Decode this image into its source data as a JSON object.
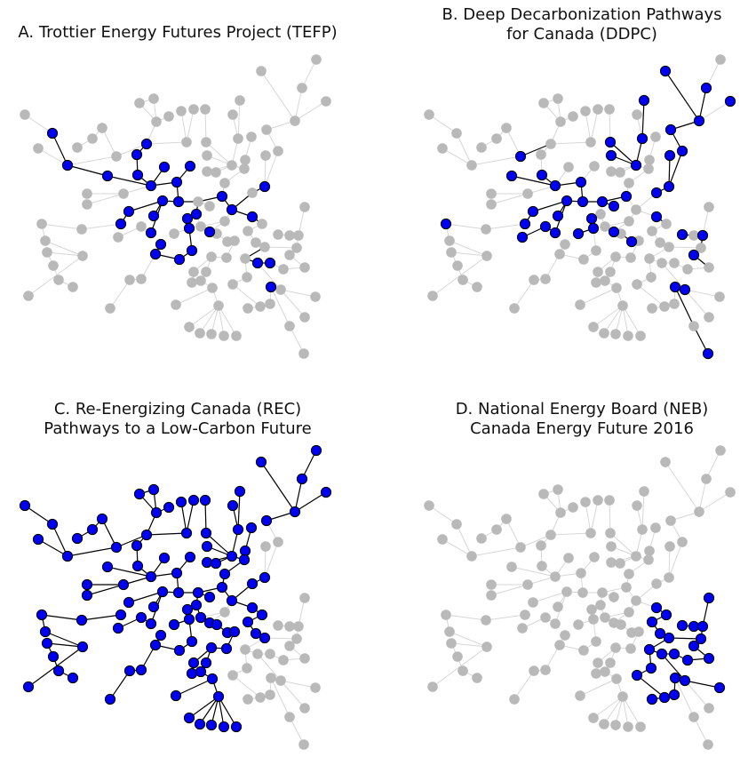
{
  "figure": {
    "panels": [
      {
        "id": "A",
        "title_lines": [
          "A. Trottier Energy Futures Project (TEFP)"
        ]
      },
      {
        "id": "B",
        "title_lines": [
          "B. Deep Decarbonization Pathways",
          "for Canada (DDPC)"
        ]
      },
      {
        "id": "C",
        "title_lines": [
          "C. Re-Energizing Canada (REC)",
          "Pathways to a Low-Carbon Future"
        ]
      },
      {
        "id": "D",
        "title_lines": [
          "D. National Energy Board (NEB)",
          "Canada Energy Future 2016"
        ]
      }
    ],
    "colors": {
      "highlight_node": "#0000f0",
      "background_node": "#b9b9b9",
      "background_edge": "#d7d7d7",
      "highlight_edge": "#000000"
    }
  }
}
